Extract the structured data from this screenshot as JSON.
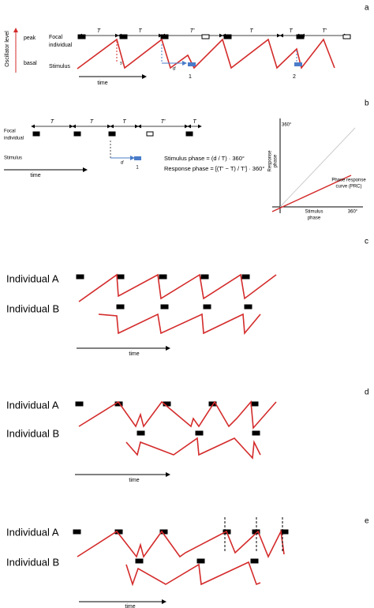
{
  "panels": {
    "a": {
      "label": "a",
      "y_axis_label": "Oscillator level",
      "peak": "peak",
      "basal": "basal",
      "focal": [
        "Focal",
        "individual"
      ],
      "stimulus": "Stimulus",
      "periods": [
        "T",
        "T",
        "T'",
        "T",
        "T",
        "T'"
      ],
      "d": "d",
      "s": "s",
      "time": "time",
      "markers": [
        "1",
        "2"
      ]
    },
    "b": {
      "label": "b",
      "focal": [
        "Focal",
        "individual"
      ],
      "stimulus": "Stimulus",
      "periods": [
        "T",
        "T",
        "T",
        "T'",
        "T"
      ],
      "d": "d",
      "time": "time",
      "marker": "1",
      "formulas": [
        "Stimulus phase = (d / T) · 360°",
        "Response phase = [(T' − T) / T'] · 360°"
      ],
      "graph": {
        "y_max": "360°",
        "y_label": [
          "Response",
          "phase"
        ],
        "curve": [
          "Phase response",
          "curve (PRC)"
        ],
        "x_label": [
          "Stimulus",
          "phase"
        ],
        "x_max": "360°"
      }
    },
    "c": {
      "label": "c",
      "individual_a": "Individual A",
      "individual_b": "Individual B",
      "time": "time"
    },
    "d": {
      "label": "d",
      "individual_a": "Individual A",
      "individual_b": "Individual B",
      "time": "time"
    },
    "e": {
      "label": "e",
      "individual_a": "Individual A",
      "individual_b": "Individual B",
      "time": "time"
    }
  }
}
